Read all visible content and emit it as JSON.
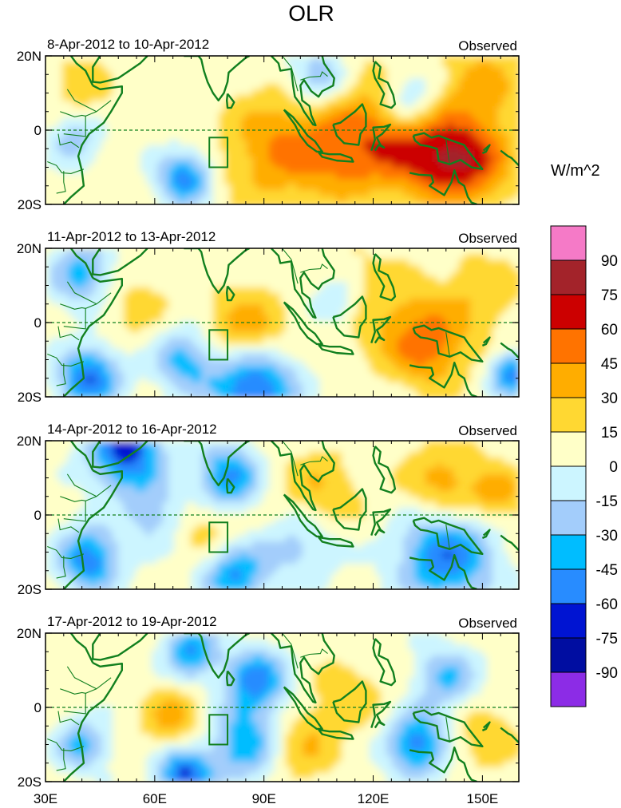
{
  "chart_data": {
    "type": "heatmap",
    "title": "OLR",
    "colorbar": {
      "units": "W/m^2",
      "levels": [
        -105,
        -90,
        -75,
        -60,
        -45,
        -30,
        -15,
        0,
        15,
        30,
        45,
        60,
        75,
        90,
        105
      ],
      "labels": [
        "90",
        "75",
        "60",
        "45",
        "30",
        "15",
        "0",
        "-15",
        "-30",
        "-45",
        "-60",
        "-75",
        "-90"
      ],
      "colors_top_to_bottom": [
        "#f57ac7",
        "#a3232a",
        "#cc0000",
        "#ff7300",
        "#ffad00",
        "#ffd832",
        "#ffffc8",
        "#ccf5ff",
        "#a3cdfb",
        "#00bdff",
        "#288cff",
        "#0014d2",
        "#000da1",
        "#8c2ce6"
      ]
    },
    "x_axis": {
      "ticks": [
        30,
        60,
        90,
        120,
        150
      ],
      "tick_labels": [
        "30E",
        "60E",
        "90E",
        "120E",
        "150E"
      ],
      "range": [
        30,
        160
      ]
    },
    "y_axis": {
      "ticks": [
        20,
        0,
        -20
      ],
      "tick_labels": [
        "20N",
        "0",
        "20S"
      ],
      "range": [
        -20,
        20
      ]
    },
    "index_box": {
      "lon": [
        75,
        80
      ],
      "lat": [
        -10,
        -2
      ]
    },
    "panels": [
      {
        "period": "8-Apr-2012 to 10-Apr-2012",
        "tag": "Observed",
        "blobs": [
          {
            "lon": 95,
            "lat": -5,
            "v": 40,
            "r": 11
          },
          {
            "lon": 135,
            "lat": -6,
            "v": 55,
            "r": 9
          },
          {
            "lon": 148,
            "lat": -9,
            "v": 45,
            "r": 8
          },
          {
            "lon": 115,
            "lat": -6,
            "v": 35,
            "r": 9
          },
          {
            "lon": 120,
            "lat": 8,
            "v": 20,
            "r": 10
          },
          {
            "lon": 150,
            "lat": 12,
            "v": 30,
            "r": 8
          },
          {
            "lon": 68,
            "lat": -13,
            "v": -60,
            "r": 5
          },
          {
            "lon": 130,
            "lat": 8,
            "v": -40,
            "r": 6
          },
          {
            "lon": 38,
            "lat": -3,
            "v": -30,
            "r": 5
          },
          {
            "lon": 105,
            "lat": 14,
            "v": -40,
            "r": 6
          },
          {
            "lon": 40,
            "lat": 12,
            "v": 20,
            "r": 6
          }
        ]
      },
      {
        "period": "11-Apr-2012 to 13-Apr-2012",
        "tag": "Observed",
        "blobs": [
          {
            "lon": 85,
            "lat": -3,
            "v": 40,
            "r": 8
          },
          {
            "lon": 135,
            "lat": -6,
            "v": 45,
            "r": 8
          },
          {
            "lon": 120,
            "lat": 5,
            "v": 20,
            "r": 10
          },
          {
            "lon": 150,
            "lat": 8,
            "v": 20,
            "r": 8
          },
          {
            "lon": 87,
            "lat": -17,
            "v": -75,
            "r": 8
          },
          {
            "lon": 42,
            "lat": -15,
            "v": -65,
            "r": 6
          },
          {
            "lon": 40,
            "lat": 13,
            "v": -45,
            "r": 6
          },
          {
            "lon": 158,
            "lat": -14,
            "v": -60,
            "r": 4
          },
          {
            "lon": 68,
            "lat": -10,
            "v": -45,
            "r": 6
          },
          {
            "lon": 110,
            "lat": 5,
            "v": -30,
            "r": 5
          },
          {
            "lon": 55,
            "lat": 5,
            "v": 15,
            "r": 8
          }
        ]
      },
      {
        "period": "14-Apr-2012 to 16-Apr-2012",
        "tag": "Observed",
        "blobs": [
          {
            "lon": 52,
            "lat": 17,
            "v": -75,
            "r": 7
          },
          {
            "lon": 80,
            "lat": 10,
            "v": -60,
            "r": 6
          },
          {
            "lon": 140,
            "lat": -11,
            "v": -65,
            "r": 9
          },
          {
            "lon": 42,
            "lat": -12,
            "v": -60,
            "r": 6
          },
          {
            "lon": 82,
            "lat": -16,
            "v": -55,
            "r": 6
          },
          {
            "lon": 100,
            "lat": -8,
            "v": -30,
            "r": 7
          },
          {
            "lon": 140,
            "lat": 8,
            "v": 35,
            "r": 8
          },
          {
            "lon": 105,
            "lat": 6,
            "v": 25,
            "r": 8
          },
          {
            "lon": 75,
            "lat": -3,
            "v": 20,
            "r": 7
          },
          {
            "lon": 155,
            "lat": 5,
            "v": 30,
            "r": 5
          },
          {
            "lon": 60,
            "lat": 0,
            "v": -30,
            "r": 6
          }
        ]
      },
      {
        "period": "17-Apr-2012 to 19-Apr-2012",
        "tag": "Observed",
        "blobs": [
          {
            "lon": 65,
            "lat": -3,
            "v": 30,
            "r": 6
          },
          {
            "lon": 100,
            "lat": -10,
            "v": 25,
            "r": 8
          },
          {
            "lon": 150,
            "lat": -8,
            "v": 20,
            "r": 7
          },
          {
            "lon": 115,
            "lat": 5,
            "v": 15,
            "r": 8
          },
          {
            "lon": 85,
            "lat": -10,
            "v": -50,
            "r": 7
          },
          {
            "lon": 68,
            "lat": -18,
            "v": -70,
            "r": 5
          },
          {
            "lon": 132,
            "lat": -10,
            "v": -60,
            "r": 6
          },
          {
            "lon": 88,
            "lat": 7,
            "v": -60,
            "r": 6
          },
          {
            "lon": 140,
            "lat": 8,
            "v": -40,
            "r": 6
          },
          {
            "lon": 40,
            "lat": -10,
            "v": -40,
            "r": 5
          },
          {
            "lon": 70,
            "lat": 15,
            "v": -55,
            "r": 5
          }
        ]
      }
    ]
  }
}
